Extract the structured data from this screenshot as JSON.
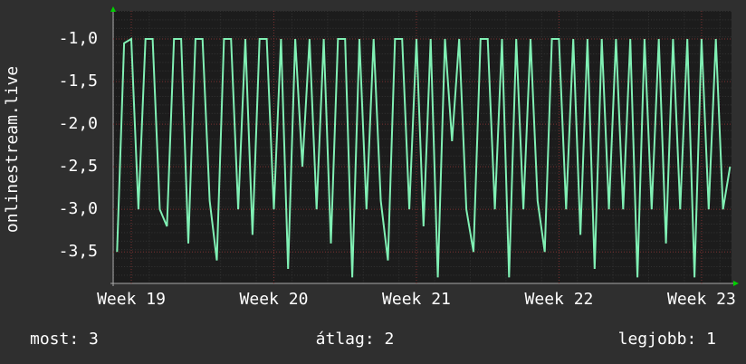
{
  "chart_data": {
    "type": "line",
    "ylabel": "onlinestream.live",
    "x": [
      18.9,
      18.95,
      19.0,
      19.05,
      19.1,
      19.15,
      19.2,
      19.25,
      19.3,
      19.35,
      19.4,
      19.45,
      19.5,
      19.55,
      19.6,
      19.65,
      19.7,
      19.75,
      19.8,
      19.85,
      19.9,
      19.95,
      20.0,
      20.05,
      20.1,
      20.15,
      20.2,
      20.25,
      20.3,
      20.35,
      20.4,
      20.45,
      20.5,
      20.55,
      20.6,
      20.65,
      20.7,
      20.75,
      20.8,
      20.85,
      20.9,
      20.95,
      21.0,
      21.05,
      21.1,
      21.15,
      21.2,
      21.25,
      21.3,
      21.35,
      21.4,
      21.45,
      21.5,
      21.55,
      21.6,
      21.65,
      21.7,
      21.75,
      21.8,
      21.85,
      21.9,
      21.95,
      22.0,
      22.05,
      22.1,
      22.15,
      22.2,
      22.25,
      22.3,
      22.35,
      22.4,
      22.45,
      22.5,
      22.55,
      22.6,
      22.65,
      22.7,
      22.75,
      22.8,
      22.85,
      22.9,
      22.95,
      23.0,
      23.05,
      23.1,
      23.15,
      23.2
    ],
    "series": [
      {
        "color": "#80f0b4",
        "values": [
          -3.5,
          -1.05,
          -1.0,
          -3.0,
          -1.0,
          -1.0,
          -3.0,
          -3.2,
          -1.0,
          -1.0,
          -3.4,
          -1.0,
          -1.0,
          -2.9,
          -3.6,
          -1.0,
          -1.0,
          -3.0,
          -1.0,
          -3.3,
          -1.0,
          -1.0,
          -3.0,
          -1.0,
          -3.7,
          -1.0,
          -2.5,
          -1.0,
          -3.0,
          -1.0,
          -3.4,
          -1.0,
          -1.0,
          -3.8,
          -1.0,
          -3.0,
          -1.0,
          -2.9,
          -3.6,
          -1.0,
          -1.0,
          -3.0,
          -1.0,
          -3.2,
          -1.0,
          -3.8,
          -1.0,
          -2.2,
          -1.0,
          -3.0,
          -3.5,
          -1.0,
          -1.0,
          -3.0,
          -1.0,
          -3.8,
          -1.0,
          -3.0,
          -1.0,
          -2.9,
          -3.5,
          -1.0,
          -1.0,
          -3.0,
          -1.0,
          -3.3,
          -1.0,
          -3.7,
          -1.0,
          -3.0,
          -1.0,
          -3.0,
          -1.0,
          -3.8,
          -1.0,
          -3.0,
          -1.0,
          -3.4,
          -1.0,
          -3.0,
          -1.0,
          -3.8,
          -1.0,
          -3.0,
          -1.0,
          -3.0,
          -2.5
        ]
      }
    ],
    "xlim": [
      18.873,
      23.21
    ],
    "xticks": [
      {
        "value": 19,
        "label": "Week 19"
      },
      {
        "value": 20,
        "label": "Week 20"
      },
      {
        "value": 21,
        "label": "Week 21"
      },
      {
        "value": 22,
        "label": "Week 22"
      },
      {
        "value": 23,
        "label": "Week 23"
      }
    ],
    "ylim": [
      -3.87,
      -0.67
    ],
    "yticks": [
      {
        "value": -1,
        "label": "-1,0"
      },
      {
        "value": -1.5,
        "label": "-1,5"
      },
      {
        "value": -2,
        "label": "-2,0"
      },
      {
        "value": -2.5,
        "label": "-2,5"
      },
      {
        "value": -3,
        "label": "-3,0"
      },
      {
        "value": -3.5,
        "label": "-3,5"
      }
    ],
    "grid": true,
    "footer": [
      "most: 3",
      "átlag: 2",
      "legjobb: 1"
    ]
  }
}
